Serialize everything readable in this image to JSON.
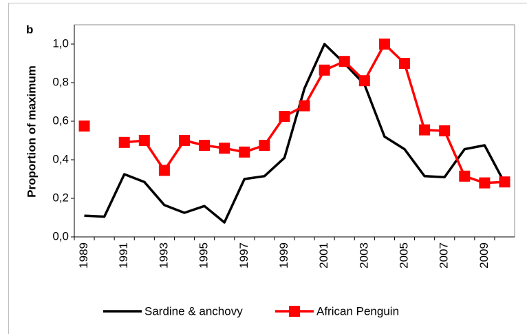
{
  "chart_data": {
    "type": "line",
    "panel_label": "b",
    "ylabel": "Proportion of maximum",
    "categories": [
      "1989",
      null,
      "1991",
      null,
      "1993",
      null,
      "1995",
      null,
      "1997",
      null,
      "1999",
      null,
      "2001",
      null,
      "2003",
      null,
      "2005",
      null,
      "2007",
      null,
      "2009",
      null
    ],
    "series": [
      {
        "name": "Sardine & anchovy",
        "color": "#000000",
        "marker": "none",
        "values": [
          0.11,
          0.105,
          0.325,
          0.285,
          0.165,
          0.125,
          0.16,
          0.075,
          0.3,
          0.315,
          0.41,
          0.77,
          1.0,
          0.9,
          0.79,
          0.52,
          0.455,
          0.315,
          0.31,
          0.455,
          0.475,
          0.28
        ]
      },
      {
        "name": "African Penguin",
        "color": "#ff0000",
        "marker": "square",
        "values": [
          0.575,
          null,
          0.49,
          0.5,
          0.345,
          0.5,
          0.475,
          0.46,
          0.44,
          0.475,
          0.625,
          0.68,
          0.865,
          0.91,
          0.81,
          1.0,
          0.9,
          0.555,
          0.55,
          0.315,
          0.28,
          0.285
        ]
      }
    ],
    "ylim": [
      0,
      1.1
    ],
    "yticks": [
      {
        "value": 0,
        "label": "0,0"
      },
      {
        "value": 0.2,
        "label": "0,2"
      },
      {
        "value": 0.4,
        "label": "0,4"
      },
      {
        "value": 0.6,
        "label": "0,6"
      },
      {
        "value": 0.8,
        "label": "0,8"
      },
      {
        "value": 1.0,
        "label": "1,0"
      }
    ],
    "grid": false,
    "legend": "bottom"
  }
}
